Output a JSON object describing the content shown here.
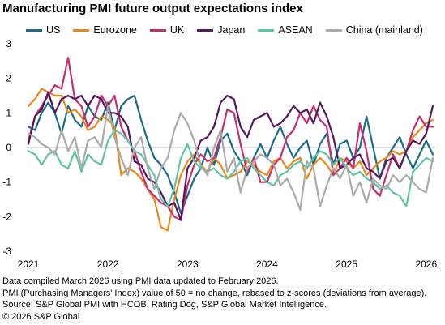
{
  "title": "Manufacturing PMI future output expectations index",
  "notes": [
    "Data compiled March 2026 using PMI data updated to February 2026.",
    "PMI (Purchasing Managers' Index) value of 50 = no change, rebased to z-scores (deviations from average).",
    "Source: S&P Global PMI with HCOB, Rating Dog, S&P Global Market Intelligence.",
    "© 2026 S&P Global."
  ],
  "chart_data": {
    "type": "line",
    "title": "Manufacturing PMI future output expectations index",
    "ylim": [
      -3,
      3
    ],
    "yticks": [
      "3",
      "2",
      "1",
      "0",
      "-1",
      "-2",
      "-3"
    ],
    "xticks": [
      "2021",
      "2022",
      "2023",
      "2024",
      "2025",
      "2026"
    ],
    "x_start": "2021-01",
    "x_end": "2026-02",
    "grid": false,
    "legend_position": "top",
    "series": [
      {
        "name": "US",
        "color": "#1b6c8c",
        "values": [
          0.6,
          0.5,
          1.0,
          1.3,
          1.0,
          0.4,
          1.2,
          0.8,
          0.6,
          1.2,
          0.9,
          0.8,
          1.3,
          0.5,
          1.2,
          1.4,
          1.5,
          0.8,
          0.2,
          -0.3,
          -0.5,
          -0.8,
          -1.3,
          -1.9,
          -1.4,
          -0.9,
          -0.6,
          0.0,
          -0.5,
          0.2,
          0.4,
          -0.1,
          -0.4,
          -0.8,
          -0.3,
          0.1,
          -0.3,
          0.2,
          0.6,
          0.1,
          -0.3,
          0.0,
          0.2,
          -0.5,
          0.1,
          0.4,
          -0.5,
          0.1,
          0.2,
          -0.3,
          0.0,
          0.9,
          0.0,
          -0.9,
          -0.3,
          0.0,
          0.3,
          -0.2,
          -0.6,
          -0.2,
          0.2,
          -0.2
        ]
      },
      {
        "name": "Eurozone",
        "color": "#e8891a",
        "values": [
          1.2,
          1.4,
          1.7,
          1.6,
          1.5,
          1.5,
          1.0,
          1.1,
          0.9,
          0.5,
          0.6,
          0.9,
          0.8,
          0.6,
          -0.8,
          -0.6,
          -0.7,
          -0.9,
          -1.2,
          -1.5,
          -2.3,
          -2.4,
          -1.5,
          -0.8,
          -0.4,
          -0.2,
          -0.5,
          -0.7,
          -0.3,
          -0.5,
          -0.9,
          -0.8,
          -0.7,
          -0.4,
          -0.5,
          -0.7,
          -0.8,
          -0.4,
          -0.3,
          -0.6,
          -0.4,
          -0.3,
          -0.9,
          -0.5,
          -0.3,
          -0.5,
          -0.8,
          -0.3,
          -0.4,
          -0.6,
          -0.4,
          -0.8,
          -0.6,
          -0.4,
          -0.3,
          -0.1,
          -0.2,
          -0.1,
          0.3,
          0.5,
          0.7,
          0.8
        ]
      },
      {
        "name": "UK",
        "color": "#c82d6f",
        "values": [
          0.2,
          0.9,
          1.2,
          1.5,
          1.8,
          1.7,
          2.6,
          1.4,
          1.2,
          0.6,
          0.9,
          1.5,
          1.2,
          1.5,
          0.6,
          0.2,
          -0.1,
          -0.7,
          -1.2,
          -1.4,
          -1.6,
          -1.7,
          -2.0,
          -2.1,
          -1.1,
          -0.5,
          -0.2,
          -0.4,
          -0.3,
          0.3,
          1.1,
          1.0,
          0.1,
          -0.7,
          -0.3,
          -1.0,
          -1.0,
          -0.5,
          -0.3,
          0.3,
          0.5,
          1.0,
          0.7,
          1.2,
          0.8,
          0.6,
          -0.8,
          -0.6,
          -0.3,
          -0.6,
          0.7,
          -0.1,
          -1.2,
          -1.4,
          -0.8,
          -0.2,
          -0.6,
          -0.1,
          0.5,
          0.9,
          0.6,
          0.6
        ]
      },
      {
        "name": "Japan",
        "color": "#55185e",
        "values": [
          0.1,
          0.9,
          1.1,
          1.6,
          1.0,
          1.4,
          1.5,
          1.4,
          1.5,
          1.2,
          1.5,
          1.4,
          1.0,
          1.0,
          0.9,
          0.6,
          -0.4,
          -0.5,
          -0.9,
          -1.0,
          -1.3,
          -1.7,
          -1.6,
          -2.1,
          -0.6,
          -0.3,
          0.2,
          0.3,
          0.6,
          1.3,
          1.5,
          1.4,
          0.6,
          0.3,
          0.8,
          0.9,
          1.0,
          0.6,
          0.7,
          0.9,
          1.2,
          1.0,
          1.1,
          0.7,
          1.3,
          0.9,
          0.3,
          -0.6,
          -0.5,
          -0.3,
          -0.2,
          -0.6,
          -0.7,
          -0.9,
          -0.4,
          -0.3,
          -0.6,
          -0.1,
          0.2,
          0.1,
          0.4,
          1.2
        ]
      },
      {
        "name": "ASEAN",
        "color": "#5ec4a4",
        "values": [
          -0.1,
          -0.2,
          -0.5,
          -0.2,
          -0.1,
          -0.5,
          -0.6,
          -0.1,
          -0.7,
          -0.2,
          -0.4,
          -0.5,
          0.2,
          0.5,
          0.4,
          0.2,
          -0.1,
          -0.2,
          -0.5,
          -0.8,
          -1.5,
          -1.7,
          -1.2,
          -0.3,
          0.1,
          -0.4,
          -0.6,
          -0.7,
          -0.6,
          -0.8,
          -0.9,
          -0.7,
          -0.4,
          -0.3,
          -0.6,
          -0.8,
          -1.0,
          -1.1,
          -0.8,
          -0.7,
          -0.5,
          -0.4,
          -0.6,
          -0.3,
          -0.1,
          -0.2,
          -0.5,
          -0.3,
          -0.6,
          -0.8,
          -0.7,
          -0.9,
          -1.0,
          -1.2,
          -1.1,
          -1.3,
          -1.4,
          -1.7,
          -0.7,
          -0.5,
          -0.3,
          -0.4
        ]
      },
      {
        "name": "China (mainland)",
        "color": "#aaaaaa",
        "values": [
          0.4,
          0.3,
          0.1,
          0.0,
          -0.2,
          0.5,
          -0.1,
          0.3,
          -0.6,
          0.2,
          0.3,
          0.0,
          1.2,
          0.3,
          -0.3,
          -0.8,
          0.0,
          0.3,
          -0.6,
          -1.2,
          -0.6,
          -0.3,
          0.5,
          1.0,
          0.7,
          0.2,
          -0.5,
          -0.8,
          0.0,
          0.5,
          -0.7,
          -0.3,
          -1.3,
          -0.6,
          -0.4,
          -0.2,
          -0.3,
          -0.5,
          -1.1,
          -0.9,
          -1.3,
          -1.8,
          -0.4,
          -0.6,
          -1.7,
          -1.1,
          -0.6,
          -0.9,
          -0.5,
          -1.4,
          -1.0,
          -1.6,
          -0.9,
          -1.1,
          -1.2,
          -0.8,
          -1.0,
          -0.8,
          -1.0,
          -1.2,
          -1.3,
          -0.3
        ]
      }
    ]
  }
}
